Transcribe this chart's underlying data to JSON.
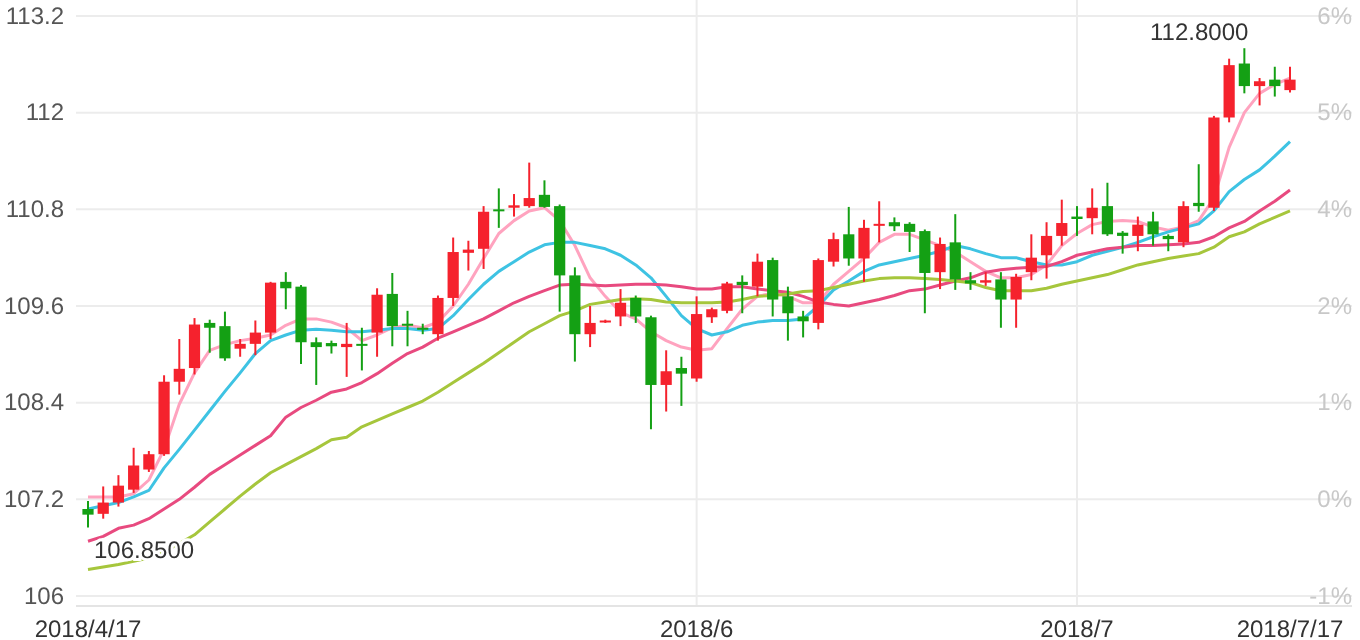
{
  "chart_data": {
    "type": "candlestick",
    "categories": [
      "2018/4/17",
      null,
      null,
      null,
      null,
      null,
      null,
      null,
      null,
      null,
      null,
      null,
      null,
      null,
      null,
      null,
      null,
      null,
      null,
      null,
      null,
      null,
      null,
      null,
      null,
      null,
      null,
      null,
      null,
      null,
      null,
      null,
      null,
      null,
      null,
      null,
      null,
      null,
      null,
      null,
      "2018/6",
      null,
      null,
      null,
      null,
      null,
      null,
      null,
      null,
      null,
      null,
      null,
      null,
      null,
      null,
      null,
      null,
      null,
      null,
      null,
      null,
      null,
      null,
      null,
      null,
      "2018/7",
      null,
      null,
      null,
      null,
      null,
      null,
      null,
      null,
      null,
      null,
      null,
      null,
      null,
      "2018/7/17"
    ],
    "ohlc": [
      [
        107.08,
        107.18,
        106.85,
        107.01
      ],
      [
        107.02,
        107.36,
        106.96,
        107.16
      ],
      [
        107.16,
        107.5,
        107.11,
        107.37
      ],
      [
        107.32,
        107.84,
        107.28,
        107.62
      ],
      [
        107.57,
        107.8,
        107.54,
        107.76
      ],
      [
        107.76,
        108.74,
        107.74,
        108.66
      ],
      [
        108.66,
        109.19,
        108.5,
        108.82
      ],
      [
        108.83,
        109.45,
        108.75,
        109.37
      ],
      [
        109.39,
        109.43,
        109.02,
        109.33
      ],
      [
        109.35,
        109.53,
        108.92,
        108.95
      ],
      [
        109.07,
        109.19,
        108.97,
        109.13
      ],
      [
        109.13,
        109.42,
        108.99,
        109.27
      ],
      [
        109.27,
        109.9,
        109.19,
        109.89
      ],
      [
        109.9,
        110.02,
        109.56,
        109.82
      ],
      [
        109.84,
        109.86,
        108.88,
        109.15
      ],
      [
        109.15,
        109.21,
        108.62,
        109.09
      ],
      [
        109.14,
        109.17,
        109.01,
        109.1
      ],
      [
        109.09,
        109.39,
        108.72,
        109.13
      ],
      [
        109.13,
        109.33,
        108.8,
        109.11
      ],
      [
        109.27,
        109.82,
        108.97,
        109.74
      ],
      [
        109.75,
        110.01,
        109.1,
        109.35
      ],
      [
        109.38,
        109.54,
        109.1,
        109.36
      ],
      [
        109.33,
        109.38,
        109.25,
        109.31
      ],
      [
        109.25,
        109.73,
        109.17,
        109.7
      ],
      [
        109.7,
        110.45,
        109.6,
        110.27
      ],
      [
        110.26,
        110.41,
        110.04,
        110.3
      ],
      [
        110.31,
        110.84,
        110.06,
        110.77
      ],
      [
        110.8,
        111.06,
        110.57,
        110.78
      ],
      [
        110.82,
        110.99,
        110.71,
        110.85
      ],
      [
        110.84,
        111.38,
        110.82,
        110.94
      ],
      [
        110.98,
        111.16,
        110.82,
        110.83
      ],
      [
        110.84,
        110.86,
        109.53,
        109.98
      ],
      [
        109.98,
        110.08,
        108.91,
        109.25
      ],
      [
        109.25,
        109.6,
        109.09,
        109.39
      ],
      [
        109.41,
        109.43,
        109.39,
        109.42
      ],
      [
        109.47,
        109.81,
        109.35,
        109.64
      ],
      [
        109.7,
        109.73,
        109.39,
        109.47
      ],
      [
        109.46,
        109.48,
        108.07,
        108.62
      ],
      [
        108.62,
        109.05,
        108.29,
        108.79
      ],
      [
        108.83,
        108.97,
        108.36,
        108.76
      ],
      [
        108.7,
        109.72,
        108.66,
        109.5
      ],
      [
        109.46,
        109.58,
        109.39,
        109.56
      ],
      [
        109.54,
        109.9,
        109.51,
        109.88
      ],
      [
        109.9,
        109.98,
        109.51,
        109.86
      ],
      [
        109.84,
        110.25,
        109.72,
        110.15
      ],
      [
        110.17,
        110.2,
        109.47,
        109.68
      ],
      [
        109.72,
        109.84,
        109.17,
        109.51
      ],
      [
        109.47,
        109.54,
        109.21,
        109.41
      ],
      [
        109.39,
        110.19,
        109.31,
        110.17
      ],
      [
        110.15,
        110.51,
        110.09,
        110.43
      ],
      [
        110.49,
        110.83,
        110.1,
        110.19
      ],
      [
        110.19,
        110.67,
        109.9,
        110.57
      ],
      [
        110.6,
        110.9,
        110.39,
        110.62
      ],
      [
        110.64,
        110.7,
        110.53,
        110.59
      ],
      [
        110.62,
        110.64,
        110.27,
        110.52
      ],
      [
        110.53,
        110.55,
        109.51,
        110.01
      ],
      [
        110.02,
        110.45,
        109.81,
        110.37
      ],
      [
        110.39,
        110.74,
        109.8,
        109.93
      ],
      [
        109.92,
        110.02,
        109.8,
        109.88
      ],
      [
        109.89,
        110.02,
        109.85,
        109.92
      ],
      [
        109.93,
        110.02,
        109.33,
        109.68
      ],
      [
        109.68,
        110.0,
        109.33,
        109.96
      ],
      [
        110.02,
        110.49,
        109.92,
        110.2
      ],
      [
        110.23,
        110.64,
        109.94,
        110.47
      ],
      [
        110.47,
        110.92,
        110.35,
        110.63
      ],
      [
        110.71,
        110.84,
        110.47,
        110.68
      ],
      [
        110.69,
        111.06,
        110.49,
        110.82
      ],
      [
        110.84,
        111.13,
        110.47,
        110.49
      ],
      [
        110.51,
        110.53,
        110.25,
        110.47
      ],
      [
        110.47,
        110.71,
        110.28,
        110.61
      ],
      [
        110.65,
        110.77,
        110.35,
        110.49
      ],
      [
        110.47,
        110.49,
        110.28,
        110.43
      ],
      [
        110.39,
        110.9,
        110.33,
        110.84
      ],
      [
        110.88,
        111.36,
        110.77,
        110.84
      ],
      [
        110.82,
        111.96,
        110.78,
        111.94
      ],
      [
        111.94,
        112.67,
        111.88,
        112.59
      ],
      [
        112.61,
        112.8,
        112.24,
        112.33
      ],
      [
        112.33,
        112.43,
        112.09,
        112.39
      ],
      [
        112.41,
        112.57,
        112.2,
        112.33
      ],
      [
        112.28,
        112.57,
        112.25,
        112.41
      ]
    ],
    "colors": [
      "#14a014",
      "#f5222d",
      "#f5222d",
      "#f5222d",
      "#f5222d",
      "#f5222d",
      "#f5222d",
      "#f5222d",
      "#14a014",
      "#14a014",
      "#f5222d",
      "#f5222d",
      "#f5222d",
      "#14a014",
      "#14a014",
      "#14a014",
      "#14a014",
      "#f5222d",
      "#14a014",
      "#f5222d",
      "#14a014",
      "#14a014",
      "#14a014",
      "#f5222d",
      "#f5222d",
      "#f5222d",
      "#f5222d",
      "#14a014",
      "#f5222d",
      "#f5222d",
      "#14a014",
      "#14a014",
      "#14a014",
      "#f5222d",
      "#f5222d",
      "#f5222d",
      "#14a014",
      "#14a014",
      "#f5222d",
      "#14a014",
      "#f5222d",
      "#f5222d",
      "#f5222d",
      "#14a014",
      "#f5222d",
      "#14a014",
      "#14a014",
      "#14a014",
      "#f5222d",
      "#f5222d",
      "#14a014",
      "#f5222d",
      "#f5222d",
      "#14a014",
      "#14a014",
      "#14a014",
      "#f5222d",
      "#14a014",
      "#14a014",
      "#f5222d",
      "#14a014",
      "#f5222d",
      "#f5222d",
      "#f5222d",
      "#f5222d",
      "#14a014",
      "#f5222d",
      "#14a014",
      "#14a014",
      "#f5222d",
      "#14a014",
      "#14a014",
      "#f5222d",
      "#14a014",
      "#f5222d",
      "#f5222d",
      "#14a014",
      "#f5222d",
      "#14a014",
      "#f5222d"
    ],
    "series": [
      {
        "type": "line",
        "color": "#ffa3bf",
        "values": [
          107.23,
          107.23,
          107.23,
          107.27,
          107.44,
          107.82,
          108.38,
          108.77,
          109.05,
          109.12,
          109.17,
          109.2,
          109.24,
          109.36,
          109.44,
          109.44,
          109.4,
          109.33,
          109.17,
          109.24,
          109.33,
          109.36,
          109.33,
          109.4,
          109.6,
          109.87,
          110.19,
          110.5,
          110.66,
          110.78,
          110.82,
          110.66,
          110.35,
          109.95,
          109.72,
          109.52,
          109.44,
          109.28,
          109.17,
          109.09,
          109.05,
          109.07,
          109.32,
          109.56,
          109.72,
          109.76,
          109.72,
          109.64,
          109.64,
          109.87,
          110.03,
          110.19,
          110.39,
          110.49,
          110.49,
          110.42,
          110.35,
          110.27,
          110.15,
          110.03,
          109.95,
          109.95,
          109.99,
          110.11,
          110.35,
          110.5,
          110.61,
          110.65,
          110.66,
          110.65,
          110.58,
          110.54,
          110.58,
          110.66,
          110.94,
          111.57,
          112.0,
          112.24,
          112.35,
          112.43
        ]
      },
      {
        "type": "line",
        "color": "#3ec3e3",
        "values": [
          107.08,
          107.12,
          107.16,
          107.23,
          107.31,
          107.59,
          107.82,
          108.06,
          108.3,
          108.54,
          108.77,
          109.01,
          109.17,
          109.24,
          109.3,
          109.31,
          109.3,
          109.28,
          109.28,
          109.3,
          109.32,
          109.32,
          109.3,
          109.32,
          109.48,
          109.68,
          109.87,
          110.03,
          110.15,
          110.27,
          110.36,
          110.39,
          110.39,
          110.35,
          110.31,
          110.23,
          110.11,
          109.95,
          109.72,
          109.48,
          109.32,
          109.24,
          109.28,
          109.36,
          109.4,
          109.42,
          109.42,
          109.44,
          109.6,
          109.8,
          109.91,
          110.03,
          110.11,
          110.15,
          110.19,
          110.23,
          110.28,
          110.35,
          110.31,
          110.25,
          110.2,
          110.2,
          110.15,
          110.11,
          110.11,
          110.15,
          110.23,
          110.28,
          110.33,
          110.39,
          110.46,
          110.52,
          110.57,
          110.62,
          110.78,
          111.02,
          111.17,
          111.29,
          111.46,
          111.64
        ]
      },
      {
        "type": "line",
        "color": "#e84a7f",
        "values": [
          106.68,
          106.74,
          106.84,
          106.88,
          106.96,
          107.08,
          107.2,
          107.35,
          107.51,
          107.63,
          107.75,
          107.87,
          107.99,
          108.22,
          108.34,
          108.43,
          108.53,
          108.57,
          108.65,
          108.76,
          108.89,
          109.01,
          109.09,
          109.2,
          109.28,
          109.36,
          109.44,
          109.54,
          109.64,
          109.72,
          109.79,
          109.86,
          109.87,
          109.86,
          109.85,
          109.86,
          109.87,
          109.87,
          109.86,
          109.84,
          109.81,
          109.81,
          109.84,
          109.84,
          109.81,
          109.79,
          109.77,
          109.72,
          109.65,
          109.62,
          109.6,
          109.64,
          109.68,
          109.73,
          109.79,
          109.81,
          109.86,
          109.91,
          109.95,
          110.02,
          110.05,
          110.07,
          110.08,
          110.09,
          110.15,
          110.23,
          110.27,
          110.31,
          110.33,
          110.35,
          110.35,
          110.36,
          110.37,
          110.39,
          110.46,
          110.57,
          110.65,
          110.78,
          110.9,
          111.04
        ]
      },
      {
        "type": "line",
        "color": "#a6c63c",
        "values": [
          106.33,
          106.36,
          106.39,
          106.43,
          106.47,
          106.55,
          106.65,
          106.76,
          106.92,
          107.08,
          107.24,
          107.39,
          107.53,
          107.63,
          107.73,
          107.83,
          107.94,
          107.97,
          108.1,
          108.18,
          108.26,
          108.34,
          108.42,
          108.53,
          108.65,
          108.77,
          108.89,
          109.02,
          109.15,
          109.28,
          109.38,
          109.48,
          109.54,
          109.62,
          109.65,
          109.68,
          109.69,
          109.68,
          109.65,
          109.64,
          109.64,
          109.64,
          109.65,
          109.68,
          109.72,
          109.73,
          109.75,
          109.78,
          109.79,
          109.83,
          109.87,
          109.91,
          109.94,
          109.95,
          109.95,
          109.94,
          109.93,
          109.91,
          109.89,
          109.83,
          109.79,
          109.79,
          109.79,
          109.82,
          109.87,
          109.91,
          109.95,
          109.99,
          110.05,
          110.11,
          110.15,
          110.19,
          110.22,
          110.25,
          110.33,
          110.46,
          110.52,
          110.62,
          110.7,
          110.78
        ]
      }
    ],
    "ylim": [
      106,
      113.2
    ],
    "yticks": [
      106,
      107.2,
      108.4,
      109.6,
      110.8,
      112,
      113.2
    ],
    "y2lim": [
      -0.93,
      5.79
    ],
    "y2ticks": [
      {
        "value": -0.93,
        "label": "-1%"
      },
      {
        "value": 0.19,
        "label": "0%"
      },
      {
        "value": 1.31,
        "label": "1%"
      },
      {
        "value": 2.43,
        "label": "2%"
      },
      {
        "value": 3.55,
        "label": "4%"
      },
      {
        "value": 4.67,
        "label": "5%"
      },
      {
        "value": 5.79,
        "label": "6%"
      }
    ],
    "grid": true,
    "annotations": [
      "112.8000",
      {
        "text": "106.8500",
        "y": 106.85
      }
    ]
  }
}
